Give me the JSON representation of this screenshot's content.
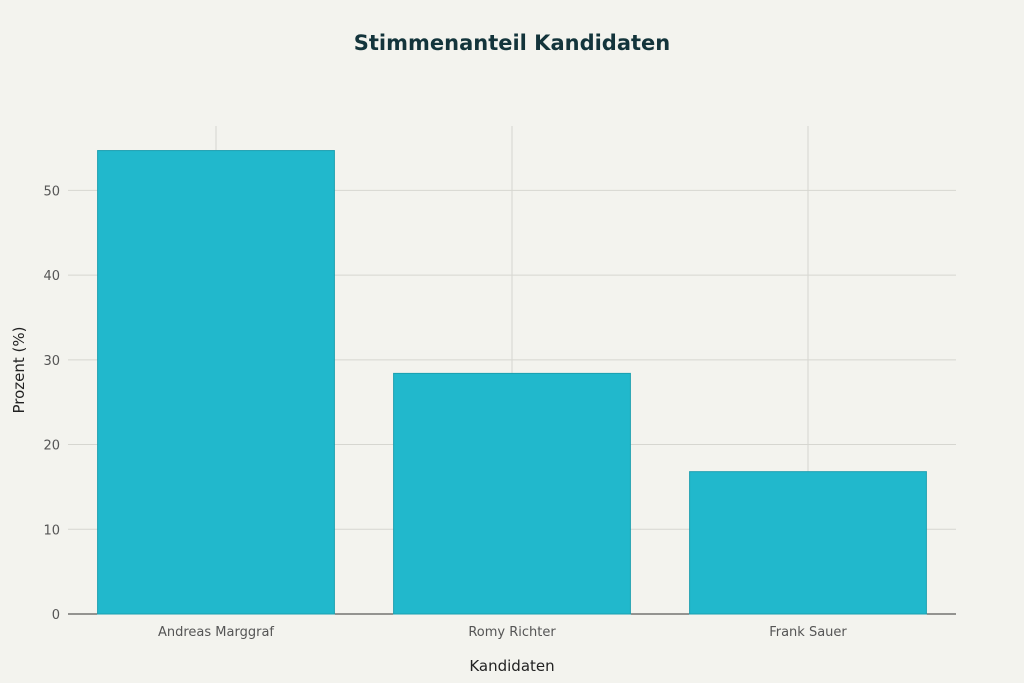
{
  "chart_data": {
    "type": "bar",
    "title": "Stimmenanteil Kandidaten",
    "xlabel": "Kandidaten",
    "ylabel": "Prozent (%)",
    "categories": [
      "Andreas Marggraf",
      "Romy Richter",
      "Frank Sauer"
    ],
    "values": [
      54.7,
      28.4,
      16.8
    ],
    "ylim": [
      0,
      57.6
    ],
    "yticks": [
      0,
      10,
      20,
      30,
      40,
      50
    ],
    "grid": true,
    "legend": "none",
    "colors": {
      "bar": "#21b8cc",
      "bar_border": "#1a9fb0",
      "background": "#f3f3ee",
      "grid": "#d6d6d0"
    }
  }
}
